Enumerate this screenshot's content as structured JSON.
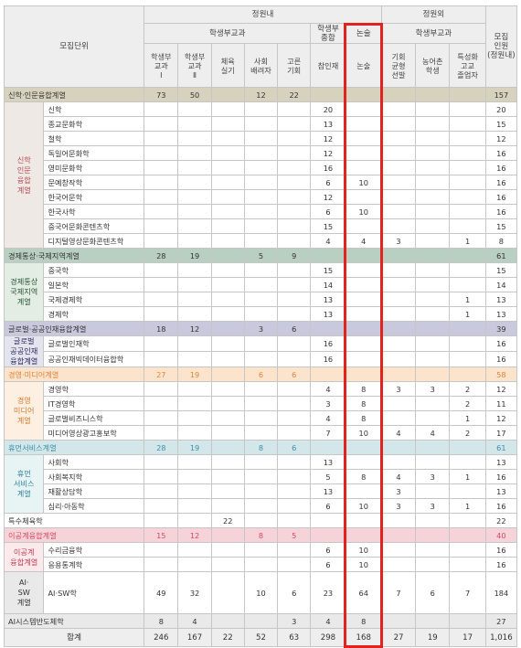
{
  "header": {
    "unit": "모집단위",
    "in_quota": "정원내",
    "out_quota": "정원외",
    "student_subject": "학생부교과",
    "student_comp": "학생부\n종합",
    "essay": "논술",
    "student_subject_out": "학생부교과",
    "total": "모집\n인원\n(정원내)",
    "sub": {
      "c1": "학생부\n교과\nⅠ",
      "c2": "학생부\n교과\nⅡ",
      "c3": "체육\n실기",
      "c4": "사회\n배려자",
      "c5": "고른\n기회",
      "c6": "참인재",
      "c7": "논술",
      "c8": "기회\n균형\n선발",
      "c9": "농어촌\n학생",
      "c10": "특성화\n고교\n졸업자"
    }
  },
  "groups": [
    {
      "name": "신학·인문융합계열",
      "bg": "#d6d2bd",
      "catBg": "#efe9e5",
      "catColor": "#b84b55",
      "vals": [
        "73",
        "50",
        "",
        "12",
        "22",
        "",
        "",
        "",
        "",
        "",
        "157"
      ],
      "cat": "신학\n인문\n융합\n계열",
      "rows": [
        {
          "name": "신학",
          "vals": [
            "",
            "",
            "",
            "",
            "",
            "20",
            "",
            "",
            "",
            "",
            "20"
          ]
        },
        {
          "name": "종교문화학",
          "vals": [
            "",
            "",
            "",
            "",
            "",
            "13",
            "",
            "",
            "",
            "",
            "15"
          ]
        },
        {
          "name": "철학",
          "vals": [
            "",
            "",
            "",
            "",
            "",
            "12",
            "",
            "",
            "",
            "",
            "12"
          ]
        },
        {
          "name": "독일어문화학",
          "vals": [
            "",
            "",
            "",
            "",
            "",
            "12",
            "",
            "",
            "",
            "",
            "16"
          ]
        },
        {
          "name": "영미문화학",
          "vals": [
            "",
            "",
            "",
            "",
            "",
            "16",
            "",
            "",
            "",
            "",
            "16"
          ]
        },
        {
          "name": "문예창작학",
          "vals": [
            "",
            "",
            "",
            "",
            "",
            "6",
            "10",
            "",
            "",
            "",
            "16"
          ]
        },
        {
          "name": "한국어문학",
          "vals": [
            "",
            "",
            "",
            "",
            "",
            "12",
            "",
            "",
            "",
            "",
            "16"
          ]
        },
        {
          "name": "한국사학",
          "vals": [
            "",
            "",
            "",
            "",
            "",
            "6",
            "10",
            "",
            "",
            "",
            "16"
          ]
        },
        {
          "name": "중국어문화콘텐츠학",
          "vals": [
            "",
            "",
            "",
            "",
            "",
            "15",
            "",
            "",
            "",
            "",
            "15"
          ]
        },
        {
          "name": "디지털영상문화콘텐츠학",
          "vals": [
            "",
            "",
            "",
            "",
            "",
            "4",
            "4",
            "3",
            "",
            "1",
            "8"
          ]
        }
      ]
    },
    {
      "name": "경제통상·국제지역계열",
      "bg": "#b9cfc1",
      "catBg": "#e3ede3",
      "catColor": "#28563a",
      "vals": [
        "28",
        "19",
        "",
        "5",
        "9",
        "",
        "",
        "",
        "",
        "",
        "61"
      ],
      "cat": "경제통상\n국제지역\n계열",
      "rows": [
        {
          "name": "중국학",
          "vals": [
            "",
            "",
            "",
            "",
            "",
            "15",
            "",
            "",
            "",
            "",
            "15"
          ]
        },
        {
          "name": "일본학",
          "vals": [
            "",
            "",
            "",
            "",
            "",
            "14",
            "",
            "",
            "",
            "",
            "14"
          ]
        },
        {
          "name": "국제경제학",
          "vals": [
            "",
            "",
            "",
            "",
            "",
            "13",
            "",
            "",
            "",
            "1",
            "13"
          ]
        },
        {
          "name": "경제학",
          "vals": [
            "",
            "",
            "",
            "",
            "",
            "13",
            "",
            "",
            "",
            "1",
            "13"
          ]
        }
      ]
    },
    {
      "name": "글로벌·공공인재융합계열",
      "bg": "#c9c9dd",
      "catBg": "#e4e4ef",
      "catColor": "#2a2a5c",
      "vals": [
        "18",
        "12",
        "",
        "3",
        "6",
        "",
        "",
        "",
        "",
        "",
        "39"
      ],
      "cat": "글로벌\n공공인재\n융합계열",
      "rows": [
        {
          "name": "글로벌인재학",
          "vals": [
            "",
            "",
            "",
            "",
            "",
            "16",
            "",
            "",
            "",
            "",
            "16"
          ]
        },
        {
          "name": "공공인재빅데이터융합학",
          "vals": [
            "",
            "",
            "",
            "",
            "",
            "16",
            "",
            "",
            "",
            "",
            "16"
          ]
        }
      ]
    },
    {
      "name": "경영·미디어계열",
      "bg": "#fce3cc",
      "catBg": "#fdf0e3",
      "catColor": "#d87b28",
      "color": "#e0843a",
      "vals": [
        "27",
        "19",
        "",
        "6",
        "6",
        "",
        "",
        "",
        "",
        "",
        "58"
      ],
      "cat": "경영\n미디어\n계열",
      "rows": [
        {
          "name": "경영학",
          "vals": [
            "",
            "",
            "",
            "",
            "",
            "4",
            "8",
            "3",
            "3",
            "2",
            "12"
          ]
        },
        {
          "name": "IT경영학",
          "vals": [
            "",
            "",
            "",
            "",
            "",
            "3",
            "8",
            "",
            "",
            "2",
            "11"
          ]
        },
        {
          "name": "글로벌비즈니스학",
          "vals": [
            "",
            "",
            "",
            "",
            "",
            "4",
            "8",
            "",
            "",
            "1",
            "12"
          ]
        },
        {
          "name": "미디어영상광고홍보학",
          "vals": [
            "",
            "",
            "",
            "",
            "",
            "7",
            "10",
            "4",
            "4",
            "2",
            "17"
          ]
        }
      ]
    },
    {
      "name": "휴먼서비스계열",
      "bg": "#d3e7ea",
      "catBg": "#e8f3f4",
      "catColor": "#2d86a0",
      "color": "#3a8fa8",
      "vals": [
        "28",
        "19",
        "",
        "8",
        "6",
        "",
        "",
        "",
        "",
        "",
        "61"
      ],
      "cat": "휴먼\n서비스\n계열",
      "rows": [
        {
          "name": "사회학",
          "vals": [
            "",
            "",
            "",
            "",
            "",
            "13",
            "",
            "",
            "",
            "",
            "13"
          ]
        },
        {
          "name": "사회복지학",
          "vals": [
            "",
            "",
            "",
            "",
            "",
            "5",
            "8",
            "4",
            "3",
            "1",
            "16"
          ]
        },
        {
          "name": "재활상담학",
          "vals": [
            "",
            "",
            "",
            "",
            "",
            "13",
            "",
            "3",
            "",
            "",
            "13"
          ]
        },
        {
          "name": "심리·아동학",
          "vals": [
            "",
            "",
            "",
            "",
            "",
            "6",
            "10",
            "3",
            "3",
            "1",
            "16"
          ]
        }
      ]
    },
    {
      "name": "특수체육학",
      "bg": "#ffffff",
      "vals": [
        "",
        "",
        "22",
        "",
        "",
        "",
        "",
        "",
        "",
        "",
        "22"
      ],
      "rows": []
    },
    {
      "name": "이공계융합계열",
      "bg": "#f6d3d8",
      "catBg": "#fbe9ec",
      "catColor": "#c23a52",
      "color": "#d24a63",
      "vals": [
        "15",
        "12",
        "",
        "8",
        "5",
        "",
        "",
        "",
        "",
        "",
        "40"
      ],
      "cat": "이공계\n융합계열",
      "rows": [
        {
          "name": "수리금융학",
          "vals": [
            "",
            "",
            "",
            "",
            "",
            "6",
            "10",
            "",
            "",
            "",
            "16"
          ]
        },
        {
          "name": "응용통계학",
          "vals": [
            "",
            "",
            "",
            "",
            "",
            "6",
            "10",
            "",
            "",
            "",
            "16"
          ]
        }
      ]
    },
    {
      "name": "AI-SW계열",
      "catOnly": true,
      "catBg": "#e9e9e9",
      "catColor": "#333",
      "cat": "AI·\nSW\n계열",
      "rows": [
        {
          "name": "AI·SW학",
          "vals": [
            "49",
            "32",
            "",
            "10",
            "6",
            "23",
            "64",
            "7",
            "6",
            "7",
            "184"
          ]
        }
      ]
    },
    {
      "name": "AI시스템반도체학",
      "bg": "#e9e9e9",
      "vals": [
        "8",
        "4",
        "",
        "",
        "3",
        "4",
        "8",
        "",
        "",
        "",
        "27"
      ],
      "rows": []
    }
  ],
  "total_row": {
    "label": "합계",
    "vals": [
      "246",
      "167",
      "22",
      "52",
      "63",
      "298",
      "168",
      "27",
      "19",
      "17",
      "1,016"
    ]
  }
}
